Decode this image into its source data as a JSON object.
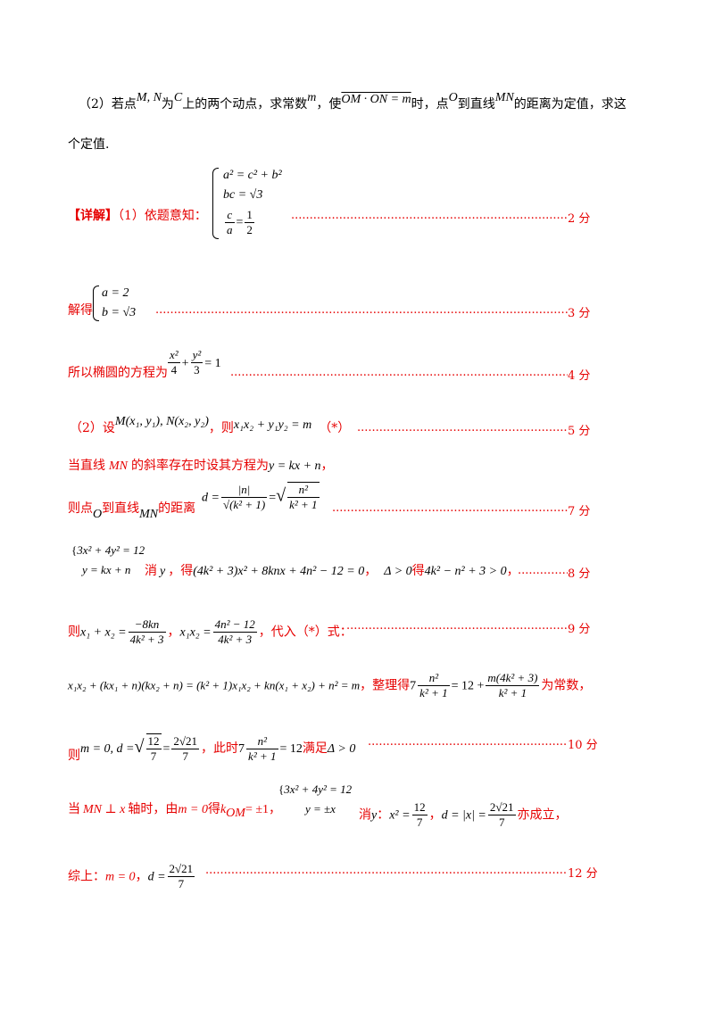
{
  "q2": {
    "text_a": "（2）若点",
    "mn": "M, N",
    "text_b": "为",
    "c": "C",
    "text_c": "上的两个动点，求常数",
    "m": "m",
    "text_d": "，使",
    "vec_eq": "OM · ON = m",
    "text_e": "时，点",
    "o": "O",
    "text_f": "到直线",
    "mn2": "MN",
    "text_g": "的距离为定值，求这",
    "line2": "个定值."
  },
  "sol": {
    "label": "【详解】",
    "p1": "（1）依题意知：",
    "sys1": [
      "a² = c² + b²",
      "bc = √3"
    ],
    "frac_c": "c",
    "frac_a": "a",
    "frac_1": "1",
    "frac_2": "2",
    "score1": "2 分",
    "solve": "解得",
    "sys2": [
      "a = 2",
      "b = √3"
    ],
    "score2": "3 分",
    "ellipse_text": "所以椭圆的方程为",
    "ell_x": "x²",
    "ell_4": "4",
    "ell_y": "y²",
    "ell_3": "3",
    "ell_eq": "= 1",
    "score3": "4 分",
    "set_text": "（2）设",
    "set_pts": "M(x₁, y₁), N(x₂, y₂)",
    "set_then": "，则",
    "set_eq": "x₁x₂ + y₁y₂ = m",
    "star": "（*）",
    "score4": "5 分",
    "slope_text_a": "当直线",
    "slope_mn": "MN",
    "slope_text_b": "的斜率存在时设其方程为",
    "slope_eq": "y = kx + n",
    "slope_end": "，",
    "dist_a": "则点",
    "dist_o": "O",
    "dist_b": "到直线",
    "dist_mn": "MN",
    "dist_c": "的距离",
    "dist_d": "d =",
    "dist_num1": "|n|",
    "dist_den1": "√(k² + 1)",
    "dist_eq2": "=",
    "dist_num2": "n²",
    "dist_den2": "k² + 1",
    "score5": "7 分",
    "sys3": [
      "3x² + 4y² = 12",
      "y = kx + n"
    ],
    "elim_a": "消",
    "elim_y": "y",
    "elim_b": "，得",
    "elim_eq": "(4k² + 3)x² + 8knx + 4n² − 12 = 0",
    "elim_c": "，",
    "delta": "Δ > 0",
    "delta_get": "得",
    "delta_eq": "4k² − n² + 3 > 0",
    "delta_end": "，",
    "score6": "8 分",
    "vieta_a": "则",
    "vieta_sum": "x₁ + x₂ =",
    "vieta_n1": "−8kn",
    "vieta_d1": "4k² + 3",
    "vieta_sep": "，",
    "vieta_prod": "x₁x₂ =",
    "vieta_n2": "4n² − 12",
    "vieta_d2": "4k² + 3",
    "vieta_b": "，代入（*）式：",
    "score7": "9 分",
    "expand_eq": "x₁x₂ + (kx₁ + n)(kx₂ + n) = (k² + 1)x₁x₂ + kn(x₁ + x₂) + n² = m",
    "expand_b": "，整理得",
    "expand_7": "7",
    "expand_n": "n²",
    "expand_d": "k² + 1",
    "expand_eq2": "= 12 +",
    "expand_n2": "m(4k² + 3)",
    "expand_d2": "k² + 1",
    "expand_c": "为常数，",
    "then_a": "则",
    "then_eq": "m = 0, d =",
    "then_sqrt": "√",
    "then_n": "12",
    "then_d": "7",
    "then_eq2": "=",
    "then_n2": "2√21",
    "then_d2": "7",
    "then_b": "，此时",
    "then_7": "7",
    "then_n3": "n²",
    "then_d3": "k² + 1",
    "then_eq3": "= 12",
    "then_c": "满足",
    "then_delta": "Δ > 0",
    "score8": "10 分",
    "perp_a": "当",
    "perp_mn": "MN ⊥ x",
    "perp_b": "轴时，由",
    "perp_m": "m = 0",
    "perp_c": "得",
    "perp_k": "k",
    "perp_sub": "OM",
    "perp_k2": "= ±1",
    "perp_end": "，",
    "sys4": [
      "3x² + 4y² = 12",
      "y = ±x"
    ],
    "perp_elim": "消",
    "perp_y": "y",
    "perp_colon": "：",
    "perp_x2": "x² =",
    "perp_n": "12",
    "perp_d": "7",
    "perp_sep": "，",
    "perp_dx": "d = |x| =",
    "perp_n2": "2√21",
    "perp_d2": "7",
    "perp_ok": "亦成立，",
    "sum_a": "综上：",
    "sum_m": "m = 0",
    "sum_sep": "，",
    "sum_d": "d =",
    "sum_n": "2√21",
    "sum_dd": "7",
    "score9": "12 分"
  },
  "colors": {
    "red": "#e60000",
    "black": "#000000"
  }
}
